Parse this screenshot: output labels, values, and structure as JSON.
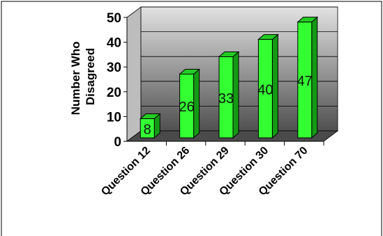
{
  "chart_data": {
    "type": "bar",
    "style": "3d-column",
    "categories": [
      "Question 12",
      "Question 26",
      "Question 29",
      "Question 30",
      "Question 70"
    ],
    "values": [
      8,
      26,
      33,
      40,
      47
    ],
    "data_labels": [
      "8",
      "26",
      "33",
      "40",
      "47"
    ],
    "title": "",
    "xlabel": "",
    "ylabel": "Number Who Disagreed",
    "ylabel_lines": [
      "Number Who",
      "Disagreed"
    ],
    "ylim": [
      0,
      50
    ],
    "yticks": [
      "0",
      "10",
      "20",
      "30",
      "40",
      "50"
    ],
    "grid": true,
    "legend": "none",
    "colors": {
      "bar_front": "#33ff33",
      "bar_side": "#149a14",
      "bar_top": "#22cc22",
      "wall_top": "#e2e2e2",
      "wall_bottom": "#505050",
      "floor": "#4a4a4a"
    }
  }
}
